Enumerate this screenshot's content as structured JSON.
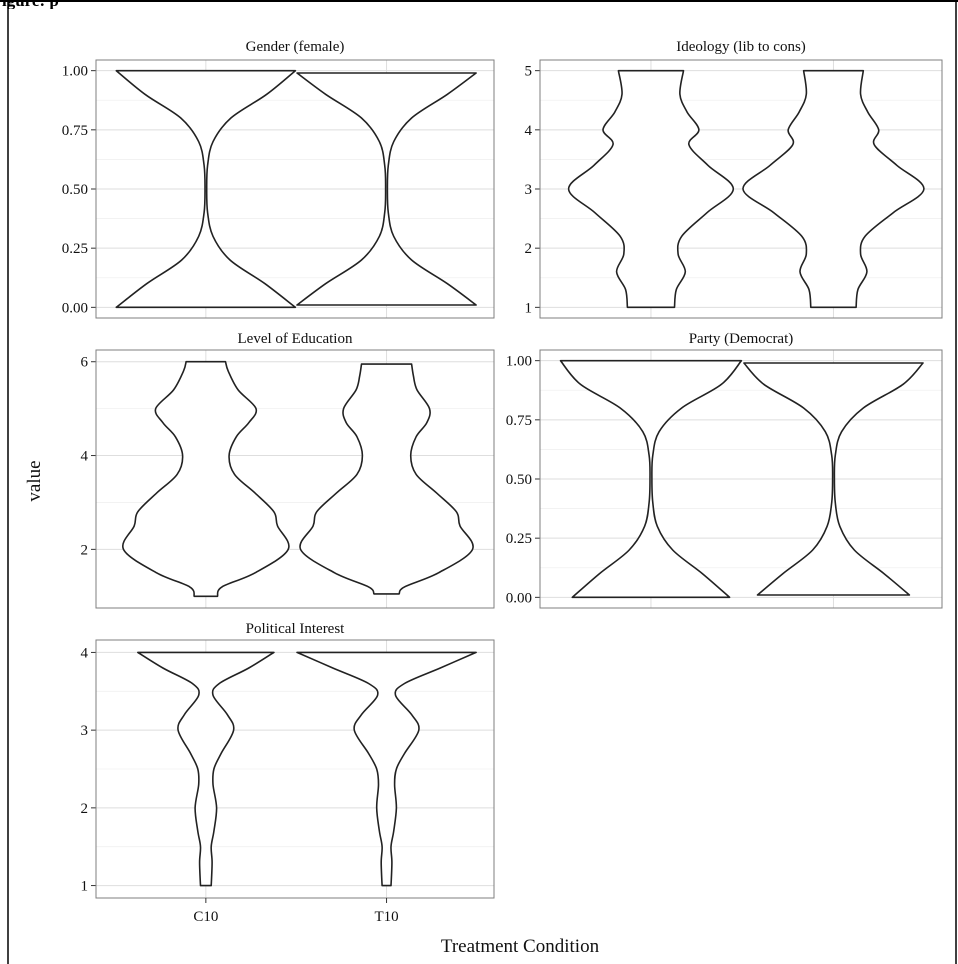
{
  "header_fragment": "igure: p",
  "chart_data": {
    "type": "violin",
    "ylabel": "value",
    "xlabel": "Treatment Condition",
    "categories": [
      "C10",
      "T10"
    ],
    "panels": [
      {
        "title": "Gender (female)",
        "yticks": [
          "0.00",
          "0.25",
          "0.50",
          "0.75",
          "1.00"
        ],
        "ytick_values": [
          0,
          0.25,
          0.5,
          0.75,
          1
        ],
        "ylim": [
          -0.045,
          1.045
        ],
        "violins": [
          {
            "category": "C10",
            "min": 0,
            "max": 1,
            "profile": [
              [
                0,
                1
              ],
              [
                0.1,
                0.66
              ],
              [
                0.2,
                0.27
              ],
              [
                0.3,
                0.08
              ],
              [
                0.4,
                0.02
              ],
              [
                0.5,
                0.01
              ],
              [
                0.6,
                0.02
              ],
              [
                0.7,
                0.08
              ],
              [
                0.8,
                0.28
              ],
              [
                0.9,
                0.68
              ],
              [
                1,
                1
              ]
            ]
          },
          {
            "category": "T10",
            "min": 0.01,
            "max": 0.99,
            "profile": [
              [
                0.01,
                1
              ],
              [
                0.1,
                0.68
              ],
              [
                0.2,
                0.28
              ],
              [
                0.3,
                0.08
              ],
              [
                0.4,
                0.02
              ],
              [
                0.5,
                0.01
              ],
              [
                0.6,
                0.02
              ],
              [
                0.7,
                0.08
              ],
              [
                0.8,
                0.28
              ],
              [
                0.9,
                0.68
              ],
              [
                0.99,
                1
              ]
            ]
          }
        ]
      },
      {
        "title": "Ideology (lib to cons)",
        "yticks": [
          "1",
          "2",
          "3",
          "4",
          "5"
        ],
        "ytick_values": [
          1,
          2,
          3,
          4,
          5
        ],
        "ylim": [
          0.82,
          5.18
        ],
        "violins": [
          {
            "category": "C10",
            "min": 1,
            "max": 5,
            "profile": [
              [
                1,
                0.26
              ],
              [
                1.3,
                0.28
              ],
              [
                1.6,
                0.38
              ],
              [
                1.9,
                0.3
              ],
              [
                2.2,
                0.34
              ],
              [
                2.6,
                0.62
              ],
              [
                3,
                0.91
              ],
              [
                3.4,
                0.63
              ],
              [
                3.75,
                0.42
              ],
              [
                4,
                0.53
              ],
              [
                4.3,
                0.4
              ],
              [
                4.6,
                0.32
              ],
              [
                5,
                0.36
              ]
            ]
          },
          {
            "category": "T10",
            "min": 1,
            "max": 5,
            "profile": [
              [
                1,
                0.25
              ],
              [
                1.3,
                0.27
              ],
              [
                1.6,
                0.37
              ],
              [
                1.9,
                0.3
              ],
              [
                2.2,
                0.35
              ],
              [
                2.6,
                0.66
              ],
              [
                3,
                1
              ],
              [
                3.4,
                0.7
              ],
              [
                3.75,
                0.45
              ],
              [
                4,
                0.5
              ],
              [
                4.3,
                0.38
              ],
              [
                4.6,
                0.3
              ],
              [
                5,
                0.33
              ]
            ]
          }
        ]
      },
      {
        "title": "Level of Education",
        "yticks": [
          "2",
          "4",
          "6"
        ],
        "ytick_values": [
          2,
          4,
          6
        ],
        "ylim": [
          0.75,
          6.25
        ],
        "violins": [
          {
            "category": "C10",
            "min": 1,
            "max": 6,
            "profile": [
              [
                1,
                0.13
              ],
              [
                1.2,
                0.18
              ],
              [
                1.5,
                0.55
              ],
              [
                2,
                0.92
              ],
              [
                2.5,
                0.8
              ],
              [
                2.8,
                0.76
              ],
              [
                3.2,
                0.55
              ],
              [
                3.6,
                0.32
              ],
              [
                4,
                0.26
              ],
              [
                4.4,
                0.34
              ],
              [
                4.7,
                0.48
              ],
              [
                5,
                0.56
              ],
              [
                5.4,
                0.36
              ],
              [
                5.8,
                0.25
              ],
              [
                6,
                0.22
              ]
            ]
          },
          {
            "category": "T10",
            "min": 1.05,
            "max": 5.95,
            "profile": [
              [
                1.05,
                0.14
              ],
              [
                1.2,
                0.2
              ],
              [
                1.5,
                0.58
              ],
              [
                2,
                0.96
              ],
              [
                2.5,
                0.82
              ],
              [
                2.8,
                0.78
              ],
              [
                3.2,
                0.56
              ],
              [
                3.6,
                0.33
              ],
              [
                4,
                0.27
              ],
              [
                4.4,
                0.33
              ],
              [
                4.7,
                0.45
              ],
              [
                5,
                0.48
              ],
              [
                5.4,
                0.34
              ],
              [
                5.7,
                0.3
              ],
              [
                5.95,
                0.28
              ]
            ]
          }
        ]
      },
      {
        "title": "Party (Democrat)",
        "yticks": [
          "0.00",
          "0.25",
          "0.50",
          "0.75",
          "1.00"
        ],
        "ytick_values": [
          0,
          0.25,
          0.5,
          0.75,
          1
        ],
        "ylim": [
          -0.045,
          1.045
        ],
        "violins": [
          {
            "category": "C10",
            "min": 0,
            "max": 1,
            "profile": [
              [
                0,
                0.87
              ],
              [
                0.1,
                0.57
              ],
              [
                0.2,
                0.24
              ],
              [
                0.3,
                0.07
              ],
              [
                0.4,
                0.02
              ],
              [
                0.5,
                0.01
              ],
              [
                0.6,
                0.02
              ],
              [
                0.7,
                0.09
              ],
              [
                0.8,
                0.34
              ],
              [
                0.9,
                0.78
              ],
              [
                1,
                1
              ]
            ]
          },
          {
            "category": "T10",
            "min": 0.01,
            "max": 0.99,
            "profile": [
              [
                0.01,
                0.84
              ],
              [
                0.1,
                0.56
              ],
              [
                0.2,
                0.23
              ],
              [
                0.3,
                0.07
              ],
              [
                0.4,
                0.02
              ],
              [
                0.5,
                0.01
              ],
              [
                0.6,
                0.02
              ],
              [
                0.7,
                0.09
              ],
              [
                0.8,
                0.33
              ],
              [
                0.9,
                0.77
              ],
              [
                0.99,
                0.99
              ]
            ]
          }
        ]
      },
      {
        "title": "Political Interest",
        "yticks": [
          "1",
          "2",
          "3",
          "4"
        ],
        "ytick_values": [
          1,
          2,
          3,
          4
        ],
        "ylim": [
          0.84,
          4.16
        ],
        "violins": [
          {
            "category": "C10",
            "min": 1,
            "max": 4,
            "profile": [
              [
                1,
                0.06
              ],
              [
                1.3,
                0.07
              ],
              [
                1.5,
                0.06
              ],
              [
                1.7,
                0.09
              ],
              [
                2,
                0.12
              ],
              [
                2.3,
                0.08
              ],
              [
                2.5,
                0.09
              ],
              [
                2.7,
                0.17
              ],
              [
                3,
                0.31
              ],
              [
                3.2,
                0.24
              ],
              [
                3.45,
                0.08
              ],
              [
                3.6,
                0.15
              ],
              [
                3.8,
                0.48
              ],
              [
                4,
                0.76
              ]
            ]
          },
          {
            "category": "T10",
            "min": 1,
            "max": 4,
            "profile": [
              [
                1,
                0.05
              ],
              [
                1.3,
                0.06
              ],
              [
                1.5,
                0.05
              ],
              [
                1.7,
                0.08
              ],
              [
                2,
                0.11
              ],
              [
                2.3,
                0.09
              ],
              [
                2.5,
                0.11
              ],
              [
                2.7,
                0.2
              ],
              [
                3,
                0.36
              ],
              [
                3.2,
                0.28
              ],
              [
                3.45,
                0.1
              ],
              [
                3.6,
                0.2
              ],
              [
                3.8,
                0.6
              ],
              [
                4,
                1
              ]
            ]
          }
        ]
      }
    ]
  }
}
